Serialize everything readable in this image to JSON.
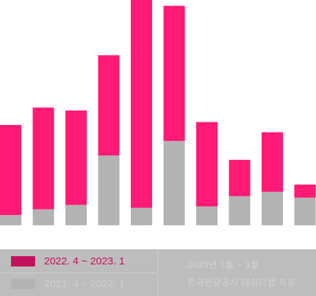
{
  "chart_data": {
    "type": "bar",
    "stacked": true,
    "categories": [
      "",
      "",
      "",
      "",
      "",
      "",
      "",
      "",
      "",
      ""
    ],
    "series": [
      {
        "values": [
          7,
          11,
          14,
          48,
          12,
          58,
          13,
          20,
          23,
          19
        ]
      },
      {
        "values": [
          62,
          70,
          65,
          69,
          143,
          93,
          58,
          25,
          41,
          9
        ]
      }
    ],
    "ylim": [
      0,
      155
    ],
    "grid": false,
    "legend_placement": "bottom"
  },
  "colors": {
    "base": "#b3b3b3",
    "top": "#ff1a75",
    "legend_pink": "#c4115d",
    "legend_gray": "#b3b3b3"
  },
  "legend": {
    "items": [
      {
        "label": "2022. 4 ~ 2023. 1"
      },
      {
        "label": "2021. 4 ~ 2022. 1"
      }
    ],
    "notes": [
      "2023년 1월 ~ 3월",
      "한국관광공사 데이터랩 자료"
    ]
  }
}
